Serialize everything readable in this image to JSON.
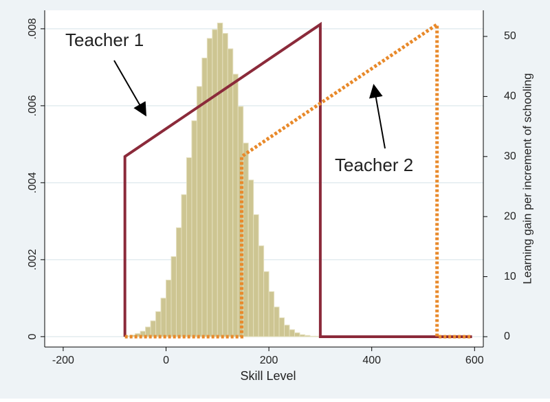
{
  "chart_data": {
    "type": "histogram",
    "xlabel": "Skill Level",
    "y2label": "Learning gain per increment of schooling",
    "xlim": [
      -236,
      617
    ],
    "xticks": [
      -200,
      0,
      200,
      400,
      600
    ],
    "ylim": [
      -0.00027,
      0.00848
    ],
    "yticks": [
      0,
      {
        "value": 0.002,
        "label": ".002"
      },
      {
        "value": 0.004,
        "label": ".004"
      },
      {
        "value": 0.006,
        "label": ".006"
      },
      {
        "value": 0.008,
        "label": ".008"
      }
    ],
    "y2lim": [
      -1.72,
      54.35
    ],
    "y2ticks": [
      0,
      10,
      20,
      30,
      40,
      50
    ],
    "grid": true,
    "color": "#cdc592",
    "bins": [
      -80,
      -70,
      -60,
      -50,
      -40,
      -30,
      -20,
      -10,
      0,
      10,
      20,
      30,
      40,
      50,
      60,
      70,
      80,
      90,
      100,
      110,
      120,
      130,
      140,
      150,
      160,
      170,
      180,
      190,
      200,
      210,
      220,
      230,
      240,
      250,
      260,
      270,
      280,
      290,
      300
    ],
    "values": [
      2e-05,
      4e-05,
      8e-05,
      0.00014,
      0.00025,
      0.00041,
      0.00065,
      0.001,
      0.00147,
      0.00208,
      0.00283,
      0.00369,
      0.00465,
      0.00561,
      0.0065,
      0.00724,
      0.00775,
      0.00798,
      0.00815,
      0.00788,
      0.00748,
      0.00682,
      0.00598,
      0.00503,
      0.00407,
      0.00317,
      0.00236,
      0.00169,
      0.00117,
      0.00077,
      0.00049,
      0.0003,
      0.00018,
      0.0001,
      5e-05,
      3e-05,
      1e-05,
      1e-05,
      0
    ],
    "series": [
      {
        "name": "Teacher 1",
        "color": "#8b2a3a",
        "line_style": "solid",
        "axis": "y2",
        "x": [
          -80,
          -80,
          300,
          300,
          595
        ],
        "values": [
          0,
          30,
          52,
          0,
          0
        ]
      },
      {
        "name": "Teacher 2",
        "color": "#e8892a",
        "line_style": "dotted",
        "axis": "y2",
        "x": [
          -80,
          147,
          147,
          527,
          527,
          595
        ],
        "values": [
          0,
          0,
          30,
          52,
          0,
          0
        ]
      }
    ]
  }
}
